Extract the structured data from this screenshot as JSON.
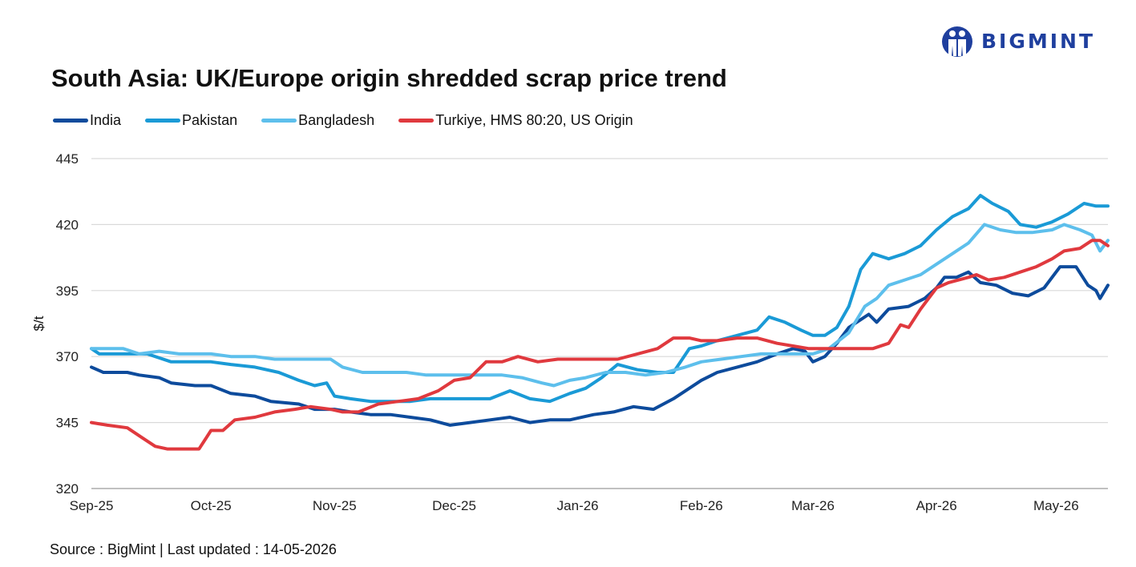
{
  "brand": {
    "logo_text": "BIGMINT",
    "color": "#1f3f9e"
  },
  "title": "South Asia: UK/Europe origin shredded scrap price trend",
  "source": "Source : BigMint | Last updated : 14-05-2026",
  "chart_data": {
    "type": "line",
    "title": "South Asia: UK/Europe origin shredded scrap price trend",
    "ylabel": "$/t",
    "xlabel": "",
    "ylim": [
      320,
      445
    ],
    "yticks": [
      320,
      345,
      370,
      395,
      420,
      445
    ],
    "x_tick_labels": [
      "Sep-25",
      "Oct-25",
      "Nov-25",
      "Dec-25",
      "Jan-26",
      "Feb-26",
      "Mar-26",
      "Apr-26",
      "May-26"
    ],
    "x_tick_dates": [
      "2025-09-01",
      "2025-10-01",
      "2025-11-01",
      "2025-12-01",
      "2026-01-01",
      "2026-02-01",
      "2026-03-01",
      "2026-04-01",
      "2026-05-01"
    ],
    "x_range": [
      "2025-09-01",
      "2026-05-14"
    ],
    "grid": "horizontal",
    "legend_position": "top-left",
    "series": [
      {
        "name": "India",
        "color": "#0d4b9c",
        "points": [
          [
            "2025-09-01",
            366
          ],
          [
            "2025-09-04",
            364
          ],
          [
            "2025-09-10",
            364
          ],
          [
            "2025-09-13",
            363
          ],
          [
            "2025-09-18",
            362
          ],
          [
            "2025-09-21",
            360
          ],
          [
            "2025-09-27",
            359
          ],
          [
            "2025-10-01",
            359
          ],
          [
            "2025-10-06",
            356
          ],
          [
            "2025-10-12",
            355
          ],
          [
            "2025-10-16",
            353
          ],
          [
            "2025-10-23",
            352
          ],
          [
            "2025-10-27",
            350
          ],
          [
            "2025-11-01",
            350
          ],
          [
            "2025-11-05",
            349
          ],
          [
            "2025-11-10",
            348
          ],
          [
            "2025-11-15",
            348
          ],
          [
            "2025-11-20",
            347
          ],
          [
            "2025-11-25",
            346
          ],
          [
            "2025-11-30",
            344
          ],
          [
            "2025-12-05",
            345
          ],
          [
            "2025-12-10",
            346
          ],
          [
            "2025-12-15",
            347
          ],
          [
            "2025-12-20",
            345
          ],
          [
            "2025-12-25",
            346
          ],
          [
            "2025-12-30",
            346
          ],
          [
            "2026-01-05",
            348
          ],
          [
            "2026-01-10",
            349
          ],
          [
            "2026-01-15",
            351
          ],
          [
            "2026-01-20",
            350
          ],
          [
            "2026-01-25",
            354
          ],
          [
            "2026-01-29",
            358
          ],
          [
            "2026-02-01",
            361
          ],
          [
            "2026-02-05",
            364
          ],
          [
            "2026-02-10",
            366
          ],
          [
            "2026-02-15",
            368
          ],
          [
            "2026-02-20",
            371
          ],
          [
            "2026-02-24",
            373
          ],
          [
            "2026-02-27",
            372
          ],
          [
            "2026-03-01",
            368
          ],
          [
            "2026-03-04",
            370
          ],
          [
            "2026-03-07",
            375
          ],
          [
            "2026-03-10",
            381
          ],
          [
            "2026-03-13",
            384
          ],
          [
            "2026-03-15",
            386
          ],
          [
            "2026-03-17",
            383
          ],
          [
            "2026-03-20",
            388
          ],
          [
            "2026-03-25",
            389
          ],
          [
            "2026-03-29",
            392
          ],
          [
            "2026-04-01",
            396
          ],
          [
            "2026-04-03",
            400
          ],
          [
            "2026-04-06",
            400
          ],
          [
            "2026-04-09",
            402
          ],
          [
            "2026-04-12",
            398
          ],
          [
            "2026-04-16",
            397
          ],
          [
            "2026-04-20",
            394
          ],
          [
            "2026-04-24",
            393
          ],
          [
            "2026-04-28",
            396
          ],
          [
            "2026-05-02",
            404
          ],
          [
            "2026-05-06",
            404
          ],
          [
            "2026-05-09",
            397
          ],
          [
            "2026-05-11",
            395
          ],
          [
            "2026-05-12",
            392
          ],
          [
            "2026-05-14",
            397
          ]
        ]
      },
      {
        "name": "Pakistan",
        "color": "#1a9ad6",
        "points": [
          [
            "2025-09-01",
            373
          ],
          [
            "2025-09-03",
            371
          ],
          [
            "2025-09-10",
            371
          ],
          [
            "2025-09-15",
            371
          ],
          [
            "2025-09-21",
            368
          ],
          [
            "2025-09-27",
            368
          ],
          [
            "2025-10-01",
            368
          ],
          [
            "2025-10-06",
            367
          ],
          [
            "2025-10-12",
            366
          ],
          [
            "2025-10-18",
            364
          ],
          [
            "2025-10-23",
            361
          ],
          [
            "2025-10-27",
            359
          ],
          [
            "2025-10-30",
            360
          ],
          [
            "2025-11-01",
            355
          ],
          [
            "2025-11-05",
            354
          ],
          [
            "2025-11-10",
            353
          ],
          [
            "2025-11-15",
            353
          ],
          [
            "2025-11-20",
            353
          ],
          [
            "2025-11-25",
            354
          ],
          [
            "2025-11-30",
            354
          ],
          [
            "2025-12-05",
            354
          ],
          [
            "2025-12-10",
            354
          ],
          [
            "2025-12-15",
            357
          ],
          [
            "2025-12-20",
            354
          ],
          [
            "2025-12-25",
            353
          ],
          [
            "2025-12-30",
            356
          ],
          [
            "2026-01-03",
            358
          ],
          [
            "2026-01-07",
            362
          ],
          [
            "2026-01-11",
            367
          ],
          [
            "2026-01-16",
            365
          ],
          [
            "2026-01-21",
            364
          ],
          [
            "2026-01-25",
            364
          ],
          [
            "2026-01-29",
            373
          ],
          [
            "2026-02-01",
            374
          ],
          [
            "2026-02-05",
            376
          ],
          [
            "2026-02-10",
            378
          ],
          [
            "2026-02-15",
            380
          ],
          [
            "2026-02-18",
            385
          ],
          [
            "2026-02-22",
            383
          ],
          [
            "2026-02-26",
            380
          ],
          [
            "2026-03-01",
            378
          ],
          [
            "2026-03-04",
            378
          ],
          [
            "2026-03-07",
            381
          ],
          [
            "2026-03-10",
            389
          ],
          [
            "2026-03-13",
            403
          ],
          [
            "2026-03-16",
            409
          ],
          [
            "2026-03-20",
            407
          ],
          [
            "2026-03-24",
            409
          ],
          [
            "2026-03-28",
            412
          ],
          [
            "2026-04-01",
            418
          ],
          [
            "2026-04-05",
            423
          ],
          [
            "2026-04-09",
            426
          ],
          [
            "2026-04-12",
            431
          ],
          [
            "2026-04-15",
            428
          ],
          [
            "2026-04-19",
            425
          ],
          [
            "2026-04-22",
            420
          ],
          [
            "2026-04-26",
            419
          ],
          [
            "2026-04-30",
            421
          ],
          [
            "2026-05-04",
            424
          ],
          [
            "2026-05-08",
            428
          ],
          [
            "2026-05-11",
            427
          ],
          [
            "2026-05-14",
            427
          ]
        ]
      },
      {
        "name": "Bangladesh",
        "color": "#5dbfec",
        "points": [
          [
            "2025-09-01",
            373
          ],
          [
            "2025-09-05",
            373
          ],
          [
            "2025-09-09",
            373
          ],
          [
            "2025-09-13",
            371
          ],
          [
            "2025-09-18",
            372
          ],
          [
            "2025-09-23",
            371
          ],
          [
            "2025-09-27",
            371
          ],
          [
            "2025-10-01",
            371
          ],
          [
            "2025-10-06",
            370
          ],
          [
            "2025-10-12",
            370
          ],
          [
            "2025-10-17",
            369
          ],
          [
            "2025-10-22",
            369
          ],
          [
            "2025-10-27",
            369
          ],
          [
            "2025-10-31",
            369
          ],
          [
            "2025-11-03",
            366
          ],
          [
            "2025-11-08",
            364
          ],
          [
            "2025-11-14",
            364
          ],
          [
            "2025-11-19",
            364
          ],
          [
            "2025-11-24",
            363
          ],
          [
            "2025-11-29",
            363
          ],
          [
            "2025-12-03",
            363
          ],
          [
            "2025-12-08",
            363
          ],
          [
            "2025-12-13",
            363
          ],
          [
            "2025-12-18",
            362
          ],
          [
            "2025-12-23",
            360
          ],
          [
            "2025-12-26",
            359
          ],
          [
            "2025-12-30",
            361
          ],
          [
            "2026-01-03",
            362
          ],
          [
            "2026-01-08",
            364
          ],
          [
            "2026-01-13",
            364
          ],
          [
            "2026-01-18",
            363
          ],
          [
            "2026-01-23",
            364
          ],
          [
            "2026-01-28",
            366
          ],
          [
            "2026-02-01",
            368
          ],
          [
            "2026-02-06",
            369
          ],
          [
            "2026-02-11",
            370
          ],
          [
            "2026-02-16",
            371
          ],
          [
            "2026-02-21",
            371
          ],
          [
            "2026-02-25",
            371
          ],
          [
            "2026-03-01",
            371
          ],
          [
            "2026-03-05",
            373
          ],
          [
            "2026-03-10",
            379
          ],
          [
            "2026-03-14",
            389
          ],
          [
            "2026-03-17",
            392
          ],
          [
            "2026-03-20",
            397
          ],
          [
            "2026-03-24",
            399
          ],
          [
            "2026-03-28",
            401
          ],
          [
            "2026-04-01",
            405
          ],
          [
            "2026-04-05",
            409
          ],
          [
            "2026-04-09",
            413
          ],
          [
            "2026-04-13",
            420
          ],
          [
            "2026-04-17",
            418
          ],
          [
            "2026-04-21",
            417
          ],
          [
            "2026-04-25",
            417
          ],
          [
            "2026-04-30",
            418
          ],
          [
            "2026-05-03",
            420
          ],
          [
            "2026-05-07",
            418
          ],
          [
            "2026-05-10",
            416
          ],
          [
            "2026-05-12",
            410
          ],
          [
            "2026-05-14",
            414
          ]
        ]
      },
      {
        "name": "Turkiye, HMS 80:20, US Origin",
        "color": "#e0393e",
        "points": [
          [
            "2025-09-01",
            345
          ],
          [
            "2025-09-05",
            344
          ],
          [
            "2025-09-10",
            343
          ],
          [
            "2025-09-14",
            339
          ],
          [
            "2025-09-17",
            336
          ],
          [
            "2025-09-20",
            335
          ],
          [
            "2025-09-25",
            335
          ],
          [
            "2025-09-28",
            335
          ],
          [
            "2025-10-01",
            342
          ],
          [
            "2025-10-04",
            342
          ],
          [
            "2025-10-07",
            346
          ],
          [
            "2025-10-12",
            347
          ],
          [
            "2025-10-17",
            349
          ],
          [
            "2025-10-22",
            350
          ],
          [
            "2025-10-26",
            351
          ],
          [
            "2025-10-31",
            350
          ],
          [
            "2025-11-03",
            349
          ],
          [
            "2025-11-07",
            349
          ],
          [
            "2025-11-12",
            352
          ],
          [
            "2025-11-17",
            353
          ],
          [
            "2025-11-22",
            354
          ],
          [
            "2025-11-27",
            357
          ],
          [
            "2025-12-01",
            361
          ],
          [
            "2025-12-05",
            362
          ],
          [
            "2025-12-09",
            368
          ],
          [
            "2025-12-13",
            368
          ],
          [
            "2025-12-17",
            370
          ],
          [
            "2025-12-22",
            368
          ],
          [
            "2025-12-27",
            369
          ],
          [
            "2026-01-01",
            369
          ],
          [
            "2026-01-06",
            369
          ],
          [
            "2026-01-11",
            369
          ],
          [
            "2026-01-16",
            371
          ],
          [
            "2026-01-21",
            373
          ],
          [
            "2026-01-25",
            377
          ],
          [
            "2026-01-29",
            377
          ],
          [
            "2026-02-01",
            376
          ],
          [
            "2026-02-05",
            376
          ],
          [
            "2026-02-10",
            377
          ],
          [
            "2026-02-15",
            377
          ],
          [
            "2026-02-20",
            375
          ],
          [
            "2026-02-24",
            374
          ],
          [
            "2026-02-28",
            373
          ],
          [
            "2026-03-01",
            373
          ],
          [
            "2026-03-06",
            373
          ],
          [
            "2026-03-11",
            373
          ],
          [
            "2026-03-16",
            373
          ],
          [
            "2026-03-20",
            375
          ],
          [
            "2026-03-23",
            382
          ],
          [
            "2026-03-25",
            381
          ],
          [
            "2026-03-28",
            388
          ],
          [
            "2026-04-01",
            396
          ],
          [
            "2026-04-04",
            398
          ],
          [
            "2026-04-09",
            400
          ],
          [
            "2026-04-11",
            401
          ],
          [
            "2026-04-14",
            399
          ],
          [
            "2026-04-18",
            400
          ],
          [
            "2026-04-22",
            402
          ],
          [
            "2026-04-26",
            404
          ],
          [
            "2026-04-30",
            407
          ],
          [
            "2026-05-03",
            410
          ],
          [
            "2026-05-07",
            411
          ],
          [
            "2026-05-10",
            414
          ],
          [
            "2026-05-12",
            414
          ],
          [
            "2026-05-14",
            412
          ]
        ]
      }
    ]
  }
}
